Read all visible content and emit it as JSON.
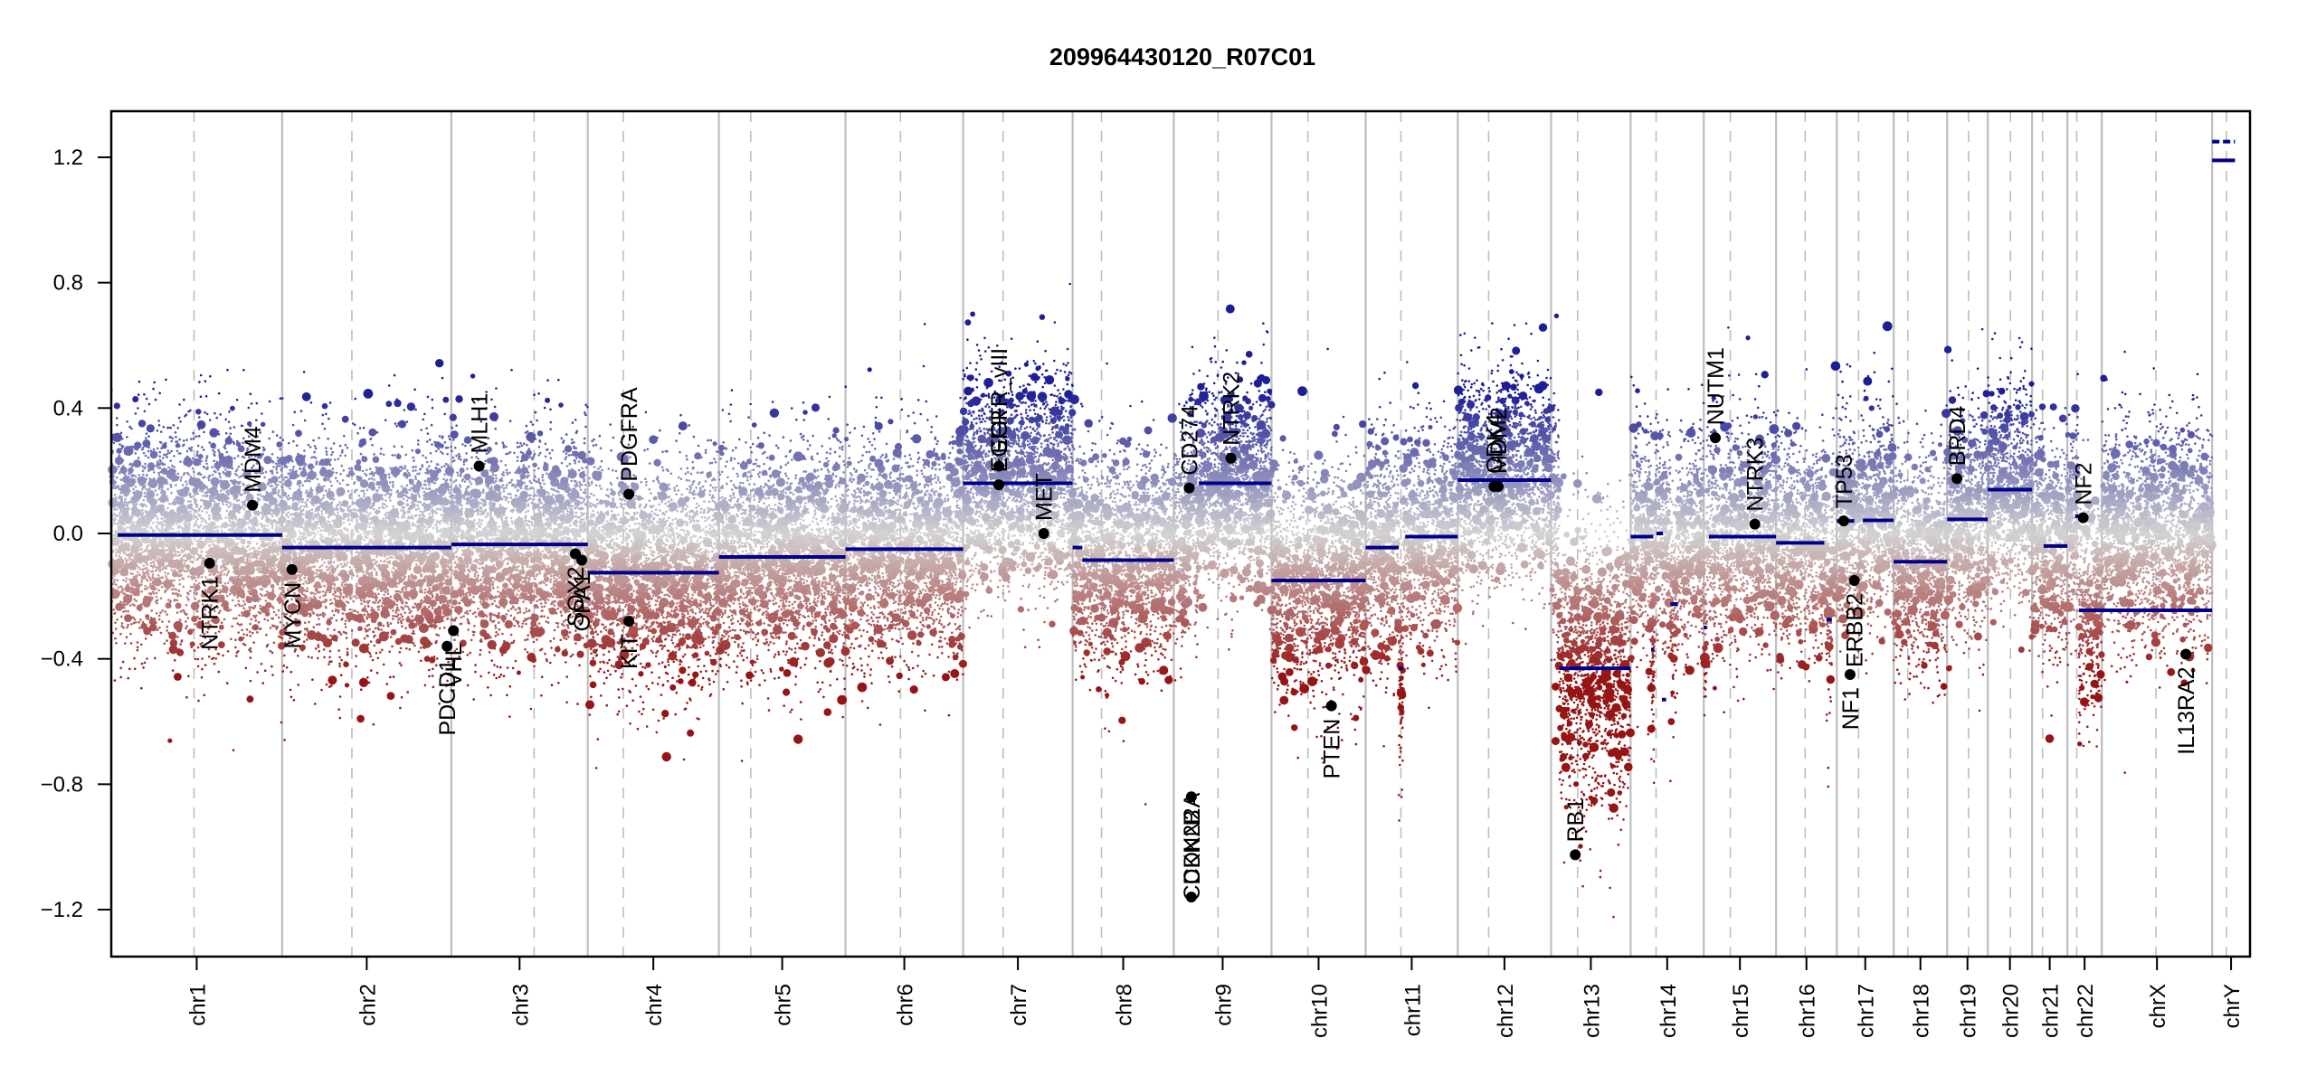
{
  "chart_data": {
    "type": "scatter",
    "title": "209964430120_R07C01",
    "xlabel": "",
    "ylabel": "",
    "ylim": [
      -1.35,
      1.35
    ],
    "yticks": [
      -1.2,
      -0.8,
      -0.4,
      0.0,
      0.4,
      0.8,
      1.2
    ],
    "ytick_labels": [
      "−1.2",
      "−0.8",
      "−0.4",
      "0.0",
      "0.4",
      "0.8",
      "1.2"
    ],
    "grid": false,
    "colors": {
      "gain": "#00008B",
      "loss": "#8B0000",
      "neutral": "#D3D3D3",
      "segment": "#00008B",
      "chrom_border": "#BEBEBE",
      "centromere": "#BEBEBE",
      "gene_point": "#000000"
    },
    "chromosomes": [
      {
        "name": "chr1",
        "rel_start": 0.0,
        "rel_end": 0.0799,
        "centromere": 0.0387
      },
      {
        "name": "chr2",
        "rel_start": 0.0799,
        "rel_end": 0.159,
        "centromere": 0.1125
      },
      {
        "name": "chr3",
        "rel_start": 0.159,
        "rel_end": 0.2228,
        "centromere": 0.1977
      },
      {
        "name": "chr4",
        "rel_start": 0.2228,
        "rel_end": 0.2841,
        "centromere": 0.2394
      },
      {
        "name": "chr5",
        "rel_start": 0.2841,
        "rel_end": 0.3433,
        "centromere": 0.299
      },
      {
        "name": "chr6",
        "rel_start": 0.3433,
        "rel_end": 0.3983,
        "centromere": 0.369
      },
      {
        "name": "chr7",
        "rel_start": 0.3983,
        "rel_end": 0.4495,
        "centromere": 0.417
      },
      {
        "name": "chr8",
        "rel_start": 0.4495,
        "rel_end": 0.4968,
        "centromere": 0.463
      },
      {
        "name": "chr9",
        "rel_start": 0.4968,
        "rel_end": 0.5425,
        "centromere": 0.5175
      },
      {
        "name": "chr10",
        "rel_start": 0.5425,
        "rel_end": 0.5865,
        "centromere": 0.5595
      },
      {
        "name": "chr11",
        "rel_start": 0.5865,
        "rel_end": 0.6296,
        "centromere": 0.603
      },
      {
        "name": "chr12",
        "rel_start": 0.6296,
        "rel_end": 0.6732,
        "centromere": 0.644
      },
      {
        "name": "chr13",
        "rel_start": 0.6732,
        "rel_end": 0.7104,
        "centromere": 0.6856
      },
      {
        "name": "chr14",
        "rel_start": 0.7104,
        "rel_end": 0.7446,
        "centromere": 0.7223
      },
      {
        "name": "chr15",
        "rel_start": 0.7446,
        "rel_end": 0.7784,
        "centromere": 0.757
      },
      {
        "name": "chr16",
        "rel_start": 0.7784,
        "rel_end": 0.8068,
        "centromere": 0.792
      },
      {
        "name": "chr17",
        "rel_start": 0.8068,
        "rel_end": 0.8334,
        "centromere": 0.817
      },
      {
        "name": "chr18",
        "rel_start": 0.8334,
        "rel_end": 0.8584,
        "centromere": 0.84
      },
      {
        "name": "chr19",
        "rel_start": 0.8584,
        "rel_end": 0.8774,
        "centromere": 0.8684
      },
      {
        "name": "chr20",
        "rel_start": 0.8774,
        "rel_end": 0.8981,
        "centromere": 0.888
      },
      {
        "name": "chr21",
        "rel_start": 0.8981,
        "rel_end": 0.9146,
        "centromere": 0.903
      },
      {
        "name": "chr22",
        "rel_start": 0.9146,
        "rel_end": 0.9307,
        "centromere": 0.919
      },
      {
        "name": "chrX",
        "rel_start": 0.9307,
        "rel_end": 0.9823,
        "centromere": 0.956
      },
      {
        "name": "chrY",
        "rel_start": 0.9823,
        "rel_end": 1.0,
        "centromere": 0.989
      }
    ],
    "segments": [
      {
        "chr": "chr1",
        "start": 0.003,
        "end": 0.0799,
        "value": -0.005
      },
      {
        "chr": "chr2",
        "start": 0.0799,
        "end": 0.159,
        "value": -0.045
      },
      {
        "chr": "chr3",
        "start": 0.159,
        "end": 0.2228,
        "value": -0.035
      },
      {
        "chr": "chr4",
        "start": 0.2228,
        "end": 0.2841,
        "value": -0.125
      },
      {
        "chr": "chr5",
        "start": 0.2841,
        "end": 0.3433,
        "value": -0.075
      },
      {
        "chr": "chr6",
        "start": 0.3433,
        "end": 0.3983,
        "value": -0.05
      },
      {
        "chr": "chr7",
        "start": 0.3983,
        "end": 0.4495,
        "value": 0.16
      },
      {
        "chr": "chr8",
        "start": 0.4495,
        "end": 0.454,
        "value": -0.045
      },
      {
        "chr": "chr8",
        "start": 0.454,
        "end": 0.4968,
        "value": -0.085
      },
      {
        "chr": "chr9",
        "start": 0.5045,
        "end": 0.5065,
        "value": 0.15
      },
      {
        "chr": "chr9",
        "start": 0.5085,
        "end": 0.5425,
        "value": 0.16
      },
      {
        "chr": "chr10",
        "start": 0.5425,
        "end": 0.5865,
        "value": -0.15
      },
      {
        "chr": "chr11",
        "start": 0.5865,
        "end": 0.602,
        "value": -0.045
      },
      {
        "chr": "chr11",
        "start": 0.602,
        "end": 0.604,
        "value": -0.43
      },
      {
        "chr": "chr11",
        "start": 0.605,
        "end": 0.6296,
        "value": -0.01
      },
      {
        "chr": "chr12",
        "start": 0.6296,
        "end": 0.6732,
        "value": 0.17
      },
      {
        "chr": "chr13",
        "start": 0.677,
        "end": 0.7104,
        "value": -0.43
      },
      {
        "chr": "chr14",
        "start": 0.7104,
        "end": 0.721,
        "value": -0.01
      },
      {
        "chr": "chr14",
        "start": 0.7225,
        "end": 0.7255,
        "value": 0.0
      },
      {
        "chr": "chr14",
        "start": 0.72,
        "end": 0.7215,
        "value": -0.37
      },
      {
        "chr": "chr14",
        "start": 0.725,
        "end": 0.727,
        "value": -0.53
      },
      {
        "chr": "chr14",
        "start": 0.729,
        "end": 0.7325,
        "value": -0.225
      },
      {
        "chr": "chr15",
        "start": 0.7446,
        "end": 0.746,
        "value": -0.3
      },
      {
        "chr": "chr15",
        "start": 0.747,
        "end": 0.7784,
        "value": -0.01
      },
      {
        "chr": "chr16",
        "start": 0.7784,
        "end": 0.801,
        "value": -0.03
      },
      {
        "chr": "chr16",
        "start": 0.802,
        "end": 0.8045,
        "value": -0.275
      },
      {
        "chr": "chr17",
        "start": 0.8068,
        "end": 0.815,
        "value": 0.04
      },
      {
        "chr": "chr17",
        "start": 0.819,
        "end": 0.8334,
        "value": 0.042
      },
      {
        "chr": "chr18",
        "start": 0.8334,
        "end": 0.8584,
        "value": -0.09
      },
      {
        "chr": "chr19",
        "start": 0.8584,
        "end": 0.8774,
        "value": 0.045
      },
      {
        "chr": "chr20",
        "start": 0.8774,
        "end": 0.8981,
        "value": 0.14
      },
      {
        "chr": "chr21",
        "start": 0.9035,
        "end": 0.9146,
        "value": -0.04
      },
      {
        "chr": "chr22",
        "start": 0.9182,
        "end": 0.92,
        "value": 0.055
      },
      {
        "chr": "chr22",
        "start": 0.92,
        "end": 0.9823,
        "value": -0.245
      },
      {
        "chr": "chrY",
        "start": 0.9823,
        "end": 0.993,
        "value": 1.19
      },
      {
        "chr": "chrY",
        "start": 0.9823,
        "end": 0.993,
        "value": 1.25,
        "dashed": true
      }
    ],
    "genes": [
      {
        "name": "NTRK1",
        "pos": 0.046,
        "value": -0.095,
        "label_side": "below"
      },
      {
        "name": "MDM4",
        "pos": 0.066,
        "value": 0.09,
        "label_side": "above"
      },
      {
        "name": "MYCN",
        "pos": 0.0845,
        "value": -0.115,
        "label_side": "below"
      },
      {
        "name": "PDCD1",
        "pos": 0.157,
        "value": -0.36,
        "label_side": "below"
      },
      {
        "name": "VHL",
        "pos": 0.16,
        "value": -0.31,
        "label_side": "below"
      },
      {
        "name": "MLH1",
        "pos": 0.172,
        "value": 0.215,
        "label_side": "above"
      },
      {
        "name": "SOX2",
        "pos": 0.217,
        "value": -0.065,
        "label_side": "below"
      },
      {
        "name": "OPA1",
        "pos": 0.22,
        "value": -0.085,
        "label_side": "below"
      },
      {
        "name": "PDGFRA",
        "pos": 0.242,
        "value": 0.125,
        "label_side": "above"
      },
      {
        "name": "KIT",
        "pos": 0.242,
        "value": -0.28,
        "label_side": "below"
      },
      {
        "name": "EGFR",
        "pos": 0.415,
        "value": 0.155,
        "label_side": "above"
      },
      {
        "name": "EGFR_vIII",
        "pos": 0.415,
        "value": 0.215,
        "label_side": "above"
      },
      {
        "name": "MET",
        "pos": 0.436,
        "value": 0.0,
        "label_side": "above"
      },
      {
        "name": "CD274",
        "pos": 0.504,
        "value": 0.145,
        "label_side": "above"
      },
      {
        "name": "CDKN2A",
        "pos": 0.505,
        "value": -1.16,
        "label_side": "above"
      },
      {
        "name": "CDKN2B",
        "pos": 0.505,
        "value": -0.84,
        "label_side": "below"
      },
      {
        "name": "NTRK2",
        "pos": 0.5235,
        "value": 0.24,
        "label_side": "above"
      },
      {
        "name": "PTEN",
        "pos": 0.5705,
        "value": -0.55,
        "label_side": "below"
      },
      {
        "name": "CDK4",
        "pos": 0.6465,
        "value": 0.15,
        "label_side": "above"
      },
      {
        "name": "MDM2",
        "pos": 0.6485,
        "value": 0.15,
        "label_side": "above"
      },
      {
        "name": "RB1",
        "pos": 0.6845,
        "value": -1.025,
        "label_side": "above"
      },
      {
        "name": "NUTM1",
        "pos": 0.75,
        "value": 0.305,
        "label_side": "above"
      },
      {
        "name": "NTRK3",
        "pos": 0.7685,
        "value": 0.03,
        "label_side": "above"
      },
      {
        "name": "TP53",
        "pos": 0.81,
        "value": 0.04,
        "label_side": "above"
      },
      {
        "name": "NF1",
        "pos": 0.813,
        "value": -0.45,
        "label_side": "below"
      },
      {
        "name": "ERBB2",
        "pos": 0.815,
        "value": -0.15,
        "label_side": "below"
      },
      {
        "name": "BRD4",
        "pos": 0.863,
        "value": 0.175,
        "label_side": "above"
      },
      {
        "name": "NF2",
        "pos": 0.922,
        "value": 0.05,
        "label_side": "above"
      },
      {
        "name": "IL13RA2",
        "pos": 0.97,
        "value": -0.385,
        "label_side": "below"
      }
    ]
  }
}
